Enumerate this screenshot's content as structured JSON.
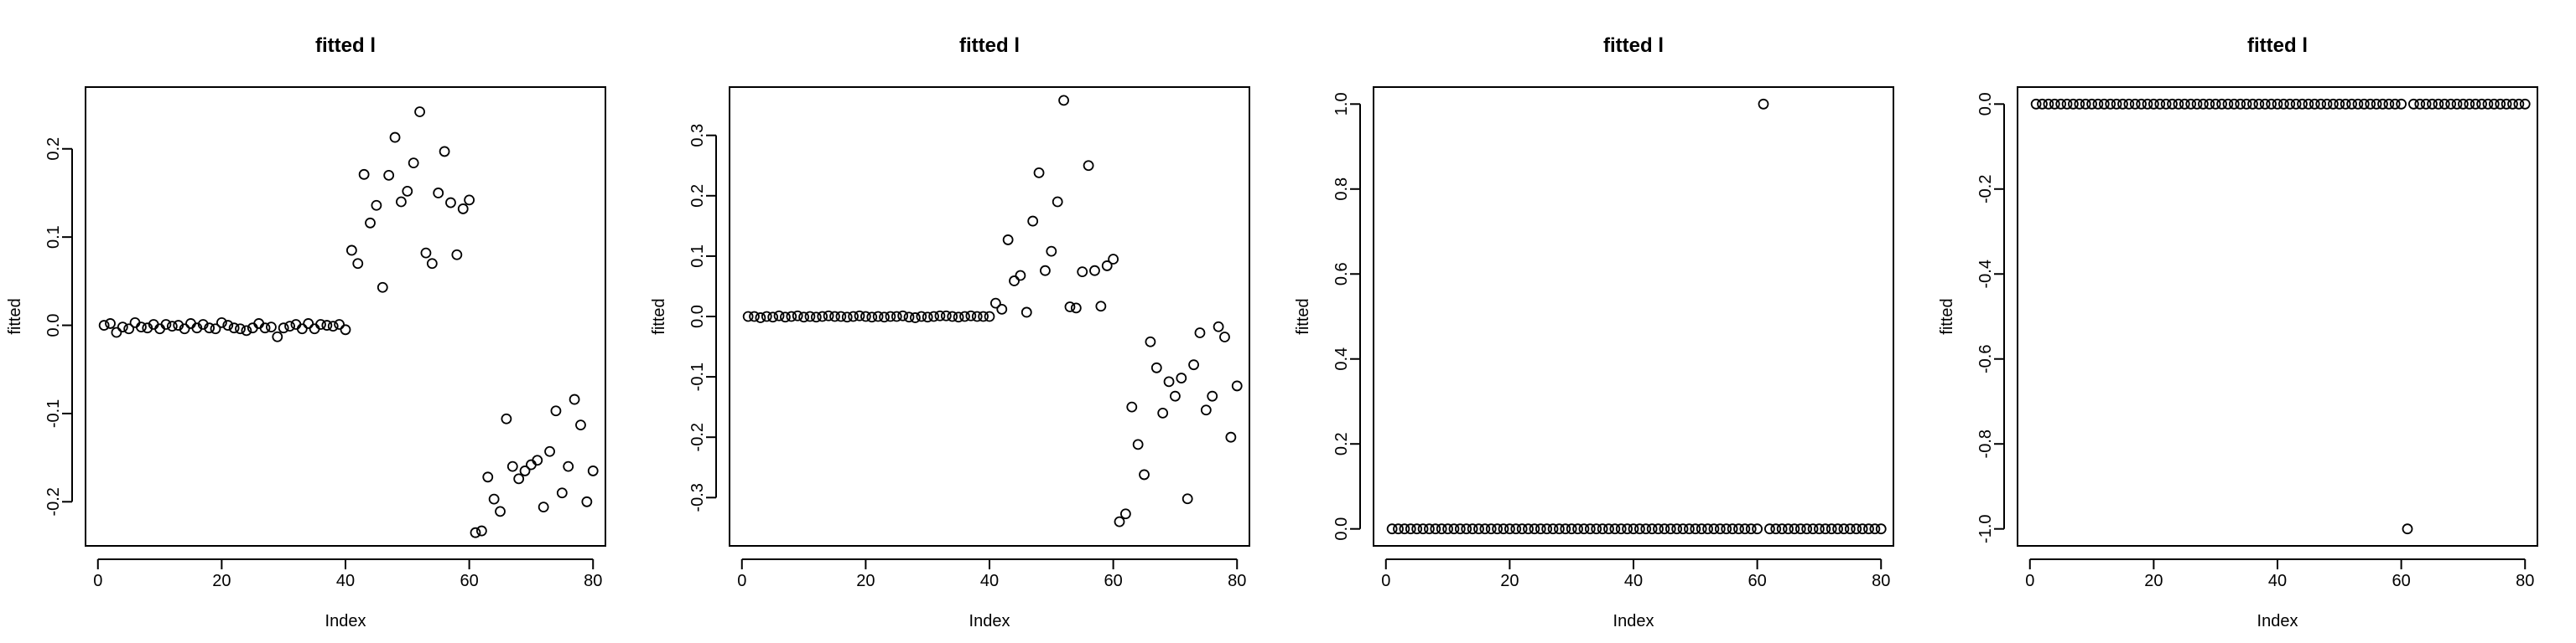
{
  "chart_data": [
    {
      "type": "scatter",
      "title": "fitted l",
      "xlabel": "Index",
      "ylabel": "fitted",
      "xlim": [
        -2,
        82
      ],
      "ylim": [
        -0.25,
        0.27
      ],
      "xticks": [
        0,
        20,
        40,
        60,
        80
      ],
      "yticks": [
        -0.2,
        -0.1,
        0.0,
        0.1,
        0.2
      ],
      "ytick_labels": [
        "-0.2",
        "-0.1",
        "0.0",
        "0.1",
        "0.2"
      ],
      "x": [
        1,
        2,
        3,
        4,
        5,
        6,
        7,
        8,
        9,
        10,
        11,
        12,
        13,
        14,
        15,
        16,
        17,
        18,
        19,
        20,
        21,
        22,
        23,
        24,
        25,
        26,
        27,
        28,
        29,
        30,
        31,
        32,
        33,
        34,
        35,
        36,
        37,
        38,
        39,
        40,
        41,
        42,
        43,
        44,
        45,
        46,
        47,
        48,
        49,
        50,
        51,
        52,
        53,
        54,
        55,
        56,
        57,
        58,
        59,
        60,
        61,
        62,
        63,
        64,
        65,
        66,
        67,
        68,
        69,
        70,
        71,
        72,
        73,
        74,
        75,
        76,
        77,
        78,
        79,
        80
      ],
      "y": [
        0.0,
        0.002,
        -0.008,
        -0.002,
        -0.004,
        0.003,
        -0.002,
        -0.003,
        0.001,
        -0.004,
        0.001,
        -0.001,
        0.0,
        -0.004,
        0.002,
        -0.003,
        0.001,
        -0.003,
        -0.004,
        0.003,
        0.0,
        -0.003,
        -0.004,
        -0.006,
        -0.003,
        0.002,
        -0.003,
        -0.002,
        -0.013,
        -0.003,
        -0.001,
        0.001,
        -0.004,
        0.002,
        -0.004,
        0.001,
        0.0,
        -0.001,
        0.001,
        -0.005,
        0.085,
        0.07,
        0.171,
        0.116,
        0.136,
        0.043,
        0.17,
        0.213,
        0.14,
        0.152,
        0.184,
        0.242,
        0.082,
        0.07,
        0.15,
        0.197,
        0.139,
        0.08,
        0.132,
        0.142,
        -0.235,
        -0.233,
        -0.172,
        -0.197,
        -0.211,
        -0.106,
        -0.16,
        -0.174,
        -0.165,
        -0.158,
        -0.153,
        -0.206,
        -0.143,
        -0.097,
        -0.19,
        -0.16,
        -0.084,
        -0.113,
        -0.2,
        -0.165
      ]
    },
    {
      "type": "scatter",
      "title": "fitted l",
      "xlabel": "Index",
      "ylabel": "fitted",
      "xlim": [
        -2,
        82
      ],
      "ylim": [
        -0.38,
        0.38
      ],
      "xticks": [
        0,
        20,
        40,
        60,
        80
      ],
      "yticks": [
        -0.3,
        -0.2,
        -0.1,
        0.0,
        0.1,
        0.2,
        0.3
      ],
      "ytick_labels": [
        "-0.3",
        "-0.2",
        "-0.1",
        "0.0",
        "0.1",
        "0.2",
        "0.3"
      ],
      "x": [
        1,
        2,
        3,
        4,
        5,
        6,
        7,
        8,
        9,
        10,
        11,
        12,
        13,
        14,
        15,
        16,
        17,
        18,
        19,
        20,
        21,
        22,
        23,
        24,
        25,
        26,
        27,
        28,
        29,
        30,
        31,
        32,
        33,
        34,
        35,
        36,
        37,
        38,
        39,
        40,
        41,
        42,
        43,
        44,
        45,
        46,
        47,
        48,
        49,
        50,
        51,
        52,
        53,
        54,
        55,
        56,
        57,
        58,
        59,
        60,
        61,
        62,
        63,
        64,
        65,
        66,
        67,
        68,
        69,
        70,
        71,
        72,
        73,
        74,
        75,
        76,
        77,
        78,
        79,
        80
      ],
      "y": [
        0.0,
        0.0,
        -0.002,
        0.0,
        -0.001,
        0.001,
        -0.001,
        0.0,
        0.001,
        -0.001,
        0.0,
        -0.001,
        0.0,
        0.001,
        0.0,
        0.0,
        -0.001,
        0.0,
        0.001,
        0.0,
        -0.001,
        0.0,
        -0.001,
        0.0,
        0.0,
        0.001,
        -0.001,
        -0.002,
        0.0,
        -0.001,
        0.0,
        0.001,
        0.001,
        0.0,
        -0.001,
        0.0,
        0.001,
        0.0,
        0.0,
        0.0,
        0.022,
        0.012,
        0.127,
        0.059,
        0.068,
        0.007,
        0.158,
        0.238,
        0.076,
        0.108,
        0.19,
        0.358,
        0.016,
        0.014,
        0.074,
        0.25,
        0.076,
        0.017,
        0.084,
        0.095,
        -0.34,
        -0.327,
        -0.15,
        -0.212,
        -0.262,
        -0.042,
        -0.085,
        -0.16,
        -0.108,
        -0.132,
        -0.102,
        -0.302,
        -0.08,
        -0.027,
        -0.155,
        -0.132,
        -0.017,
        -0.034,
        -0.2,
        -0.115
      ]
    },
    {
      "type": "scatter",
      "title": "fitted l",
      "xlabel": "Index",
      "ylabel": "fitted",
      "xlim": [
        -2,
        82
      ],
      "ylim": [
        -0.04,
        1.04
      ],
      "xticks": [
        0,
        20,
        40,
        60,
        80
      ],
      "yticks": [
        0.0,
        0.2,
        0.4,
        0.6,
        0.8,
        1.0
      ],
      "ytick_labels": [
        "0.0",
        "0.2",
        "0.4",
        "0.6",
        "0.8",
        "1.0"
      ],
      "x": [
        1,
        2,
        3,
        4,
        5,
        6,
        7,
        8,
        9,
        10,
        11,
        12,
        13,
        14,
        15,
        16,
        17,
        18,
        19,
        20,
        21,
        22,
        23,
        24,
        25,
        26,
        27,
        28,
        29,
        30,
        31,
        32,
        33,
        34,
        35,
        36,
        37,
        38,
        39,
        40,
        41,
        42,
        43,
        44,
        45,
        46,
        47,
        48,
        49,
        50,
        51,
        52,
        53,
        54,
        55,
        56,
        57,
        58,
        59,
        60,
        61,
        62,
        63,
        64,
        65,
        66,
        67,
        68,
        69,
        70,
        71,
        72,
        73,
        74,
        75,
        76,
        77,
        78,
        79,
        80
      ],
      "y": [
        0,
        0,
        0,
        0,
        0,
        0,
        0,
        0,
        0,
        0,
        0,
        0,
        0,
        0,
        0,
        0,
        0,
        0,
        0,
        0,
        0,
        0,
        0,
        0,
        0,
        0,
        0,
        0,
        0,
        0,
        0,
        0,
        0,
        0,
        0,
        0,
        0,
        0,
        0,
        0,
        0,
        0,
        0,
        0,
        0,
        0,
        0,
        0,
        0,
        0,
        0,
        0,
        0,
        0,
        0,
        0,
        0,
        0,
        0,
        0,
        1.0,
        0,
        0,
        0,
        0,
        0,
        0,
        0,
        0,
        0,
        0,
        0,
        0,
        0,
        0,
        0,
        0,
        0,
        0,
        0
      ]
    },
    {
      "type": "scatter",
      "title": "fitted l",
      "xlabel": "Index",
      "ylabel": "fitted",
      "xlim": [
        -2,
        82
      ],
      "ylim": [
        -1.04,
        0.04
      ],
      "xticks": [
        0,
        20,
        40,
        60,
        80
      ],
      "yticks": [
        -1.0,
        -0.8,
        -0.6,
        -0.4,
        -0.2,
        0.0
      ],
      "ytick_labels": [
        "-1.0",
        "-0.8",
        "-0.6",
        "-0.4",
        "-0.2",
        "0.0"
      ],
      "x": [
        1,
        2,
        3,
        4,
        5,
        6,
        7,
        8,
        9,
        10,
        11,
        12,
        13,
        14,
        15,
        16,
        17,
        18,
        19,
        20,
        21,
        22,
        23,
        24,
        25,
        26,
        27,
        28,
        29,
        30,
        31,
        32,
        33,
        34,
        35,
        36,
        37,
        38,
        39,
        40,
        41,
        42,
        43,
        44,
        45,
        46,
        47,
        48,
        49,
        50,
        51,
        52,
        53,
        54,
        55,
        56,
        57,
        58,
        59,
        60,
        61,
        62,
        63,
        64,
        65,
        66,
        67,
        68,
        69,
        70,
        71,
        72,
        73,
        74,
        75,
        76,
        77,
        78,
        79,
        80
      ],
      "y": [
        0,
        0,
        0,
        0,
        0,
        0,
        0,
        0,
        0,
        0,
        0,
        0,
        0,
        0,
        0,
        0,
        0,
        0,
        0,
        0,
        0,
        0,
        0,
        0,
        0,
        0,
        0,
        0,
        0,
        0,
        0,
        0,
        0,
        0,
        0,
        0,
        0,
        0,
        0,
        0,
        0,
        0,
        0,
        0,
        0,
        0,
        0,
        0,
        0,
        0,
        0,
        0,
        0,
        0,
        0,
        0,
        0,
        0,
        0,
        0,
        -1.0,
        0,
        0,
        0,
        0,
        0,
        0,
        0,
        0,
        0,
        0,
        0,
        0,
        0,
        0,
        0,
        0,
        0,
        0,
        0
      ]
    }
  ]
}
